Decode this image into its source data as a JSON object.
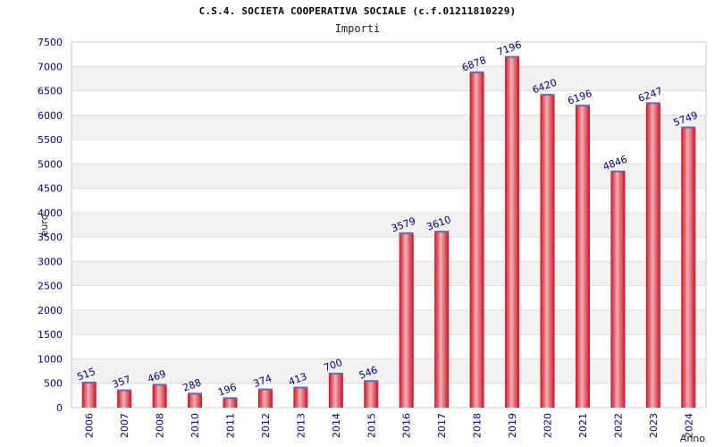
{
  "chart_data": {
    "type": "bar",
    "title": "C.S.4. SOCIETA COOPERATIVA SOCIALE (c.f.01211810229)",
    "subtitle": "Importi",
    "xlabel": "Anno",
    "ylabel": "euro",
    "categories": [
      "2006",
      "2007",
      "2008",
      "2010",
      "2011",
      "2012",
      "2013",
      "2014",
      "2015",
      "2016",
      "2017",
      "2018",
      "2019",
      "2020",
      "2021",
      "2022",
      "2023",
      "2024"
    ],
    "values": [
      515,
      357,
      469,
      288,
      196,
      374,
      413,
      700,
      546,
      3579,
      3610,
      6878,
      7196,
      6420,
      6196,
      4846,
      6247,
      5749
    ],
    "ylim": [
      0,
      7500
    ],
    "yticks": [
      0,
      500,
      1000,
      1500,
      2000,
      2500,
      3000,
      3500,
      4000,
      4500,
      5000,
      5500,
      6000,
      6500,
      7000,
      7500
    ],
    "grid": true,
    "colors": {
      "bar_center": "#f0a0a8",
      "bar_edge": "#cc1020",
      "bar_top": "#6a6ab0",
      "tick_text": "#000080",
      "band": "#f2f2f2",
      "gridline": "#dcdcdc"
    }
  }
}
